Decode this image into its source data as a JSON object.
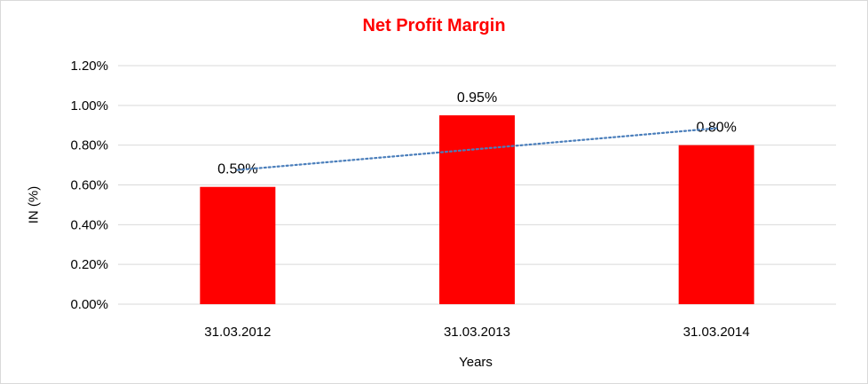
{
  "chart_data": {
    "type": "bar",
    "title": "Net Profit Margin",
    "xlabel": "Years",
    "ylabel": "IN (%)",
    "categories": [
      "31.03.2012",
      "31.03.2013",
      "31.03.2014"
    ],
    "values": [
      0.59,
      0.95,
      0.8
    ],
    "data_labels": [
      "0.59%",
      "0.95%",
      "0.80%"
    ],
    "ylim": [
      0,
      1.2
    ],
    "yticks": [
      0,
      0.2,
      0.4,
      0.6,
      0.8,
      1.0,
      1.2
    ],
    "ytick_labels": [
      "0.00%",
      "0.20%",
      "0.40%",
      "0.60%",
      "0.80%",
      "1.00%",
      "1.20%"
    ],
    "grid": true,
    "trendline": {
      "type": "linear",
      "style": "dotted",
      "color": "#4a7ebb"
    },
    "bar_color": "#ff0000",
    "title_color": "#ff0000"
  }
}
